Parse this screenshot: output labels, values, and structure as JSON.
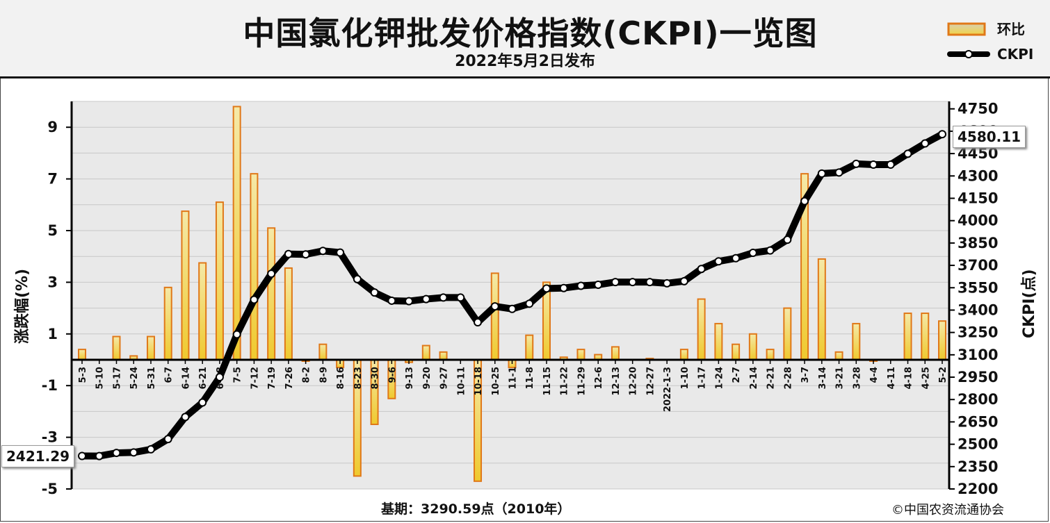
{
  "header": {
    "title": "中国氯化钾批发价格指数(CKPI)一览图",
    "subtitle": "2022年5月2日发布"
  },
  "legend": {
    "bar_label": "环比",
    "line_label": "CKPI"
  },
  "footer": {
    "base_period": "基期：3290.59点（2010年）",
    "copyright": "©中国农资流通协会"
  },
  "colors": {
    "bar_fill": "#f5d96b",
    "bar_border": "#e07818",
    "line": "#000000",
    "header_bg": "#f2f2f2",
    "plot_bg": "#e9e9e9"
  },
  "callouts": {
    "first_value": "2421.29",
    "last_value": "4580.11"
  },
  "chart_data": {
    "type": "bar",
    "title": "中国氯化钾批发价格指数(CKPI)一览图",
    "categories": [
      "5-3",
      "5-10",
      "5-17",
      "5-24",
      "5-31",
      "6-7",
      "6-14",
      "6-21",
      "6-28",
      "7-5",
      "7-12",
      "7-19",
      "7-26",
      "8-2",
      "8-9",
      "8-16",
      "8-23",
      "8-30",
      "9-6",
      "9-13",
      "9-20",
      "9-27",
      "10-11",
      "10-18",
      "10-25",
      "11-1",
      "11-8",
      "11-15",
      "11-22",
      "11-29",
      "12-6",
      "12-13",
      "12-20",
      "12-27",
      "2022-1-3",
      "1-10",
      "1-17",
      "1-24",
      "2-7",
      "2-14",
      "2-21",
      "2-28",
      "3-7",
      "3-14",
      "3-21",
      "3-28",
      "4-4",
      "4-11",
      "4-18",
      "4-25",
      "5-2"
    ],
    "ylabel": "涨跌幅(%)",
    "y2label": "CKPI(点)",
    "ylim": [
      -5,
      10
    ],
    "y_ticks": [
      9,
      7,
      5,
      3,
      1,
      -1,
      -3,
      -5
    ],
    "y2lim": [
      2200,
      4800
    ],
    "y2_ticks": [
      4750,
      4600,
      4450,
      4300,
      4150,
      4000,
      3850,
      3700,
      3550,
      3400,
      3250,
      3100,
      2950,
      2800,
      2650,
      2500,
      2350,
      2200
    ],
    "grid": true,
    "legend_position": "top-right",
    "series": [
      {
        "name": "环比",
        "type": "bar",
        "axis": "left",
        "values": [
          0.4,
          0.0,
          0.9,
          0.15,
          0.9,
          2.8,
          5.75,
          3.75,
          6.1,
          9.8,
          7.2,
          5.1,
          3.55,
          -0.05,
          0.6,
          -0.3,
          -4.5,
          -2.5,
          -1.5,
          -0.1,
          0.55,
          0.3,
          0.0,
          -4.7,
          3.35,
          -0.3,
          0.95,
          3.0,
          0.1,
          0.4,
          0.2,
          0.5,
          0.0,
          0.05,
          0.0,
          0.4,
          2.35,
          1.4,
          0.6,
          1.0,
          0.4,
          2.0,
          7.2,
          3.9,
          0.3,
          1.4,
          -0.05,
          0.0,
          1.8,
          1.8,
          1.5
        ]
      },
      {
        "name": "CKPI",
        "type": "line",
        "axis": "right",
        "values": [
          2421.29,
          2421,
          2442,
          2445,
          2466,
          2535,
          2683,
          2780,
          2950,
          3237,
          3470,
          3644,
          3776,
          3774,
          3797,
          3786,
          3608,
          3518,
          3463,
          3460,
          3474,
          3484,
          3484,
          3318,
          3425,
          3408,
          3443,
          3545,
          3548,
          3563,
          3570,
          3588,
          3588,
          3588,
          3580,
          3594,
          3676,
          3727,
          3748,
          3784,
          3800,
          3872,
          4131,
          4316,
          4323,
          4381,
          4376,
          4376,
          4449,
          4518,
          4580.11
        ]
      }
    ]
  }
}
